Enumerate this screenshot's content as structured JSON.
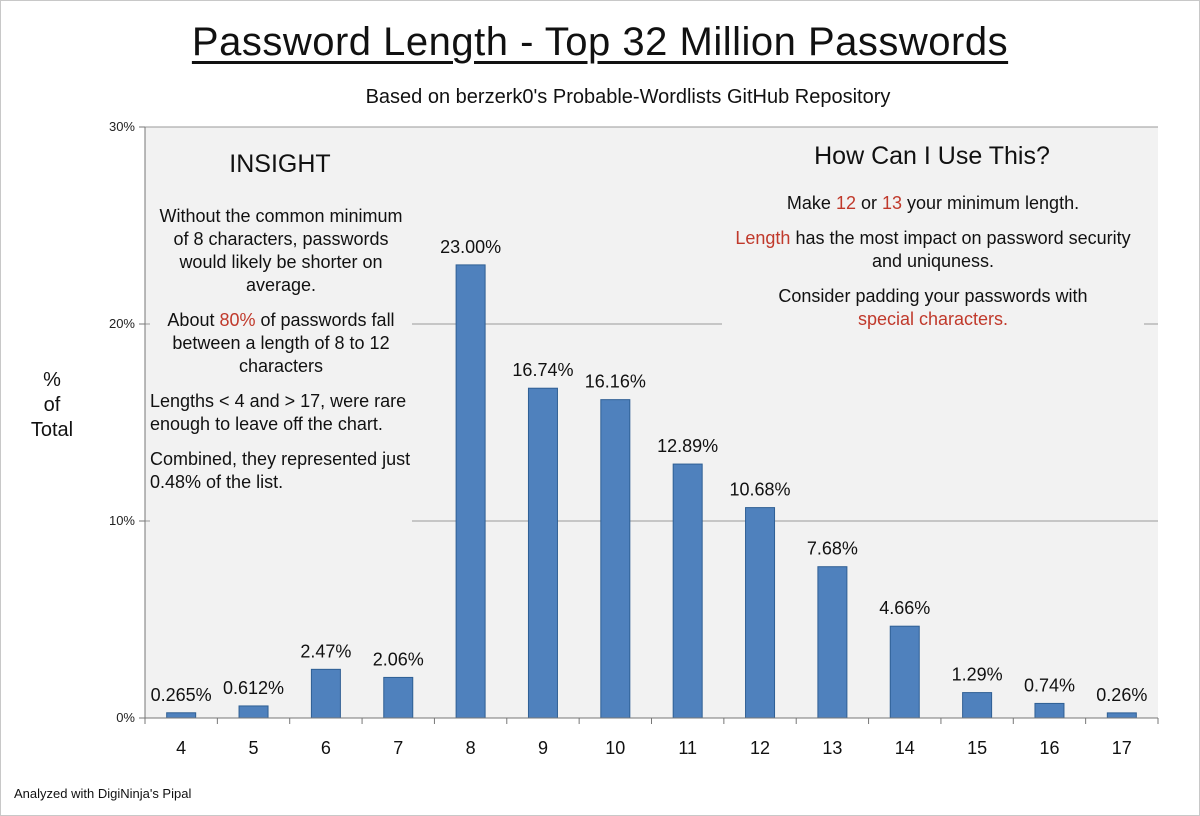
{
  "title": "Password Length - Top 32 Million Passwords",
  "subtitle": "Based on berzerk0's Probable-Wordlists GitHub Repository",
  "ylabel": [
    "%",
    "of",
    "Total"
  ],
  "footer": "Analyzed with DigiNinja's Pipal",
  "colors": {
    "bar": "#4f81bd",
    "bar_stroke": "#2f5f94",
    "plot_bg": "#f2f2f2",
    "highlight": "#c0392b"
  },
  "insight": {
    "heading": "INSIGHT",
    "p1": "Without the  common minimum of 8 characters, passwords would likely be shorter on average.",
    "p2_pre": "About ",
    "p2_hl": "80%",
    "p2_post": " of passwords fall between a length of 8 to 12 characters",
    "p3": "Lengths < 4 and  > 17, were rare enough to leave off the chart.",
    "p4": "Combined, they represented just 0.48% of the list."
  },
  "howto": {
    "heading": "How Can I Use This?",
    "l1_pre": "Make ",
    "l1_a": "12",
    "l1_mid": " or ",
    "l1_b": "13",
    "l1_post": " your minimum length.",
    "l2_hl": "Length",
    "l2_post": " has the most impact on password security and uniquness.",
    "l3": "Consider padding your passwords with",
    "l4_hl": "special characters."
  },
  "chart_data": {
    "type": "bar",
    "categories": [
      "4",
      "5",
      "6",
      "7",
      "8",
      "9",
      "10",
      "11",
      "12",
      "13",
      "14",
      "15",
      "16",
      "17"
    ],
    "values": [
      0.265,
      0.612,
      2.47,
      2.06,
      23.0,
      16.74,
      16.16,
      12.89,
      10.68,
      7.68,
      4.66,
      1.29,
      0.74,
      0.26
    ],
    "data_labels": [
      "0.265%",
      "0.612%",
      "2.47%",
      "2.06%",
      "23.00%",
      "16.74%",
      "16.16%",
      "12.89%",
      "10.68%",
      "7.68%",
      "4.66%",
      "1.29%",
      "0.74%",
      "0.26%"
    ],
    "title": "Password Length - Top 32 Million Passwords",
    "xlabel": "",
    "ylabel": "% of Total",
    "ylim": [
      0,
      30
    ],
    "yticks": [
      0,
      10,
      20,
      30
    ],
    "ytick_labels": [
      "0%",
      "10%",
      "20%",
      "30%"
    ],
    "grid": true
  }
}
